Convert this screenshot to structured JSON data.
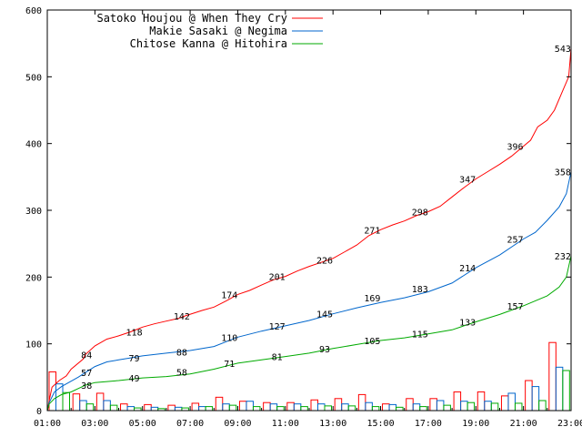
{
  "chart_data": {
    "type": "line",
    "title": "",
    "xlabel": "",
    "ylabel": "",
    "ylim": [
      0,
      600
    ],
    "yticks": [
      0,
      100,
      200,
      300,
      400,
      500,
      600
    ],
    "xlim": [
      1,
      23
    ],
    "xticks": [
      "01:00",
      "03:00",
      "05:00",
      "07:00",
      "09:00",
      "11:00",
      "13:00",
      "15:00",
      "17:00",
      "19:00",
      "21:00",
      "23:00"
    ],
    "legend_position": "top-left",
    "series": [
      {
        "name": "Satoko Houjou @ When They Cry",
        "color": "#ff0000",
        "points": [
          [
            1.0,
            0
          ],
          [
            1.08,
            15
          ],
          [
            1.2,
            35
          ],
          [
            1.5,
            45
          ],
          [
            1.8,
            52
          ],
          [
            2.0,
            62
          ],
          [
            2.5,
            77
          ],
          [
            2.6,
            84
          ],
          [
            3.0,
            97
          ],
          [
            3.5,
            107
          ],
          [
            4.0,
            112
          ],
          [
            4.5,
            118
          ],
          [
            5.0,
            125
          ],
          [
            5.5,
            130
          ],
          [
            6.0,
            134
          ],
          [
            6.5,
            138
          ],
          [
            6.8,
            142
          ],
          [
            7.5,
            150
          ],
          [
            8.0,
            155
          ],
          [
            8.5,
            164
          ],
          [
            9.0,
            174
          ],
          [
            9.5,
            180
          ],
          [
            10.0,
            188
          ],
          [
            10.5,
            196
          ],
          [
            11.0,
            201
          ],
          [
            11.5,
            209
          ],
          [
            12.0,
            216
          ],
          [
            12.5,
            222
          ],
          [
            13.0,
            228
          ],
          [
            13.5,
            238
          ],
          [
            14.0,
            248
          ],
          [
            14.5,
            262
          ],
          [
            15.0,
            271
          ],
          [
            15.5,
            278
          ],
          [
            16.0,
            284
          ],
          [
            16.5,
            292
          ],
          [
            17.0,
            298
          ],
          [
            17.5,
            306
          ],
          [
            18.0,
            320
          ],
          [
            18.5,
            334
          ],
          [
            19.0,
            347
          ],
          [
            19.5,
            358
          ],
          [
            20.0,
            369
          ],
          [
            20.5,
            381
          ],
          [
            21.0,
            396
          ],
          [
            21.3,
            405
          ],
          [
            21.6,
            425
          ],
          [
            22.0,
            435
          ],
          [
            22.3,
            450
          ],
          [
            22.6,
            475
          ],
          [
            22.9,
            500
          ],
          [
            23.0,
            543
          ]
        ]
      },
      {
        "name": "Makie Sasaki @ Negima",
        "color": "#0066cc",
        "points": [
          [
            1.0,
            0
          ],
          [
            1.08,
            12
          ],
          [
            1.3,
            28
          ],
          [
            1.6,
            36
          ],
          [
            2.0,
            44
          ],
          [
            2.3,
            50
          ],
          [
            2.6,
            57
          ],
          [
            3.0,
            66
          ],
          [
            3.5,
            73
          ],
          [
            4.0,
            76
          ],
          [
            4.5,
            79
          ],
          [
            5.0,
            82
          ],
          [
            6.0,
            86
          ],
          [
            7.0,
            90
          ],
          [
            8.0,
            96
          ],
          [
            9.0,
            110
          ],
          [
            10.0,
            119
          ],
          [
            11.0,
            127
          ],
          [
            12.0,
            135
          ],
          [
            13.0,
            145
          ],
          [
            14.0,
            154
          ],
          [
            15.0,
            162
          ],
          [
            16.0,
            169
          ],
          [
            17.0,
            178
          ],
          [
            18.0,
            191
          ],
          [
            19.0,
            214
          ],
          [
            20.0,
            233
          ],
          [
            21.0,
            257
          ],
          [
            21.5,
            267
          ],
          [
            22.0,
            285
          ],
          [
            22.5,
            305
          ],
          [
            22.8,
            325
          ],
          [
            23.0,
            358
          ]
        ]
      },
      {
        "name": "Chitose Kanna @ Hitohira",
        "color": "#00aa00",
        "points": [
          [
            1.0,
            0
          ],
          [
            1.08,
            10
          ],
          [
            1.3,
            18
          ],
          [
            1.6,
            24
          ],
          [
            2.0,
            28
          ],
          [
            2.6,
            38
          ],
          [
            3.0,
            42
          ],
          [
            4.0,
            45
          ],
          [
            5.0,
            49
          ],
          [
            6.0,
            51
          ],
          [
            7.0,
            55
          ],
          [
            8.0,
            62
          ],
          [
            9.0,
            71
          ],
          [
            10.0,
            76
          ],
          [
            11.0,
            81
          ],
          [
            12.0,
            86
          ],
          [
            13.0,
            93
          ],
          [
            14.0,
            99
          ],
          [
            15.0,
            105
          ],
          [
            16.0,
            109
          ],
          [
            17.0,
            115
          ],
          [
            18.0,
            121
          ],
          [
            19.0,
            133
          ],
          [
            20.0,
            144
          ],
          [
            21.0,
            157
          ],
          [
            22.0,
            172
          ],
          [
            22.5,
            185
          ],
          [
            22.8,
            200
          ],
          [
            23.0,
            232
          ]
        ]
      }
    ],
    "data_labels": [
      {
        "series": 0,
        "x": 2.65,
        "y": 84,
        "text": "84"
      },
      {
        "series": 0,
        "x": 4.65,
        "y": 118,
        "text": "118"
      },
      {
        "series": 0,
        "x": 6.65,
        "y": 142,
        "text": "142"
      },
      {
        "series": 0,
        "x": 8.65,
        "y": 174,
        "text": "174"
      },
      {
        "series": 0,
        "x": 10.65,
        "y": 201,
        "text": "201"
      },
      {
        "series": 0,
        "x": 12.65,
        "y": 226,
        "text": "226"
      },
      {
        "series": 0,
        "x": 14.65,
        "y": 271,
        "text": "271"
      },
      {
        "series": 0,
        "x": 16.65,
        "y": 298,
        "text": "298"
      },
      {
        "series": 0,
        "x": 18.65,
        "y": 347,
        "text": "347"
      },
      {
        "series": 0,
        "x": 20.65,
        "y": 396,
        "text": "396"
      },
      {
        "series": 0,
        "x": 22.65,
        "y": 543,
        "text": "543"
      },
      {
        "series": 1,
        "x": 2.65,
        "y": 57,
        "text": "57"
      },
      {
        "series": 1,
        "x": 4.65,
        "y": 79,
        "text": "79"
      },
      {
        "series": 1,
        "x": 6.65,
        "y": 88,
        "text": "88"
      },
      {
        "series": 1,
        "x": 8.65,
        "y": 110,
        "text": "110"
      },
      {
        "series": 1,
        "x": 10.65,
        "y": 127,
        "text": "127"
      },
      {
        "series": 1,
        "x": 12.65,
        "y": 145,
        "text": "145"
      },
      {
        "series": 1,
        "x": 14.65,
        "y": 169,
        "text": "169"
      },
      {
        "series": 1,
        "x": 16.65,
        "y": 183,
        "text": "183"
      },
      {
        "series": 1,
        "x": 18.65,
        "y": 214,
        "text": "214"
      },
      {
        "series": 1,
        "x": 20.65,
        "y": 257,
        "text": "257"
      },
      {
        "series": 1,
        "x": 22.65,
        "y": 358,
        "text": "358"
      },
      {
        "series": 2,
        "x": 2.65,
        "y": 38,
        "text": "38"
      },
      {
        "series": 2,
        "x": 4.65,
        "y": 49,
        "text": "49"
      },
      {
        "series": 2,
        "x": 6.65,
        "y": 58,
        "text": "58"
      },
      {
        "series": 2,
        "x": 8.65,
        "y": 71,
        "text": "71"
      },
      {
        "series": 2,
        "x": 10.65,
        "y": 81,
        "text": "81"
      },
      {
        "series": 2,
        "x": 12.65,
        "y": 93,
        "text": "93"
      },
      {
        "series": 2,
        "x": 14.65,
        "y": 105,
        "text": "105"
      },
      {
        "series": 2,
        "x": 16.65,
        "y": 115,
        "text": "115"
      },
      {
        "series": 2,
        "x": 18.65,
        "y": 133,
        "text": "133"
      },
      {
        "series": 2,
        "x": 20.65,
        "y": 157,
        "text": "157"
      },
      {
        "series": 2,
        "x": 22.65,
        "y": 232,
        "text": "232"
      }
    ],
    "hourly_bars": {
      "hours": [
        1,
        2,
        3,
        4,
        5,
        6,
        7,
        8,
        9,
        10,
        11,
        12,
        13,
        14,
        15,
        16,
        17,
        18,
        19,
        20,
        21,
        22,
        23
      ],
      "series": [
        [
          58,
          25,
          26,
          10,
          9,
          8,
          11,
          20,
          14,
          12,
          12,
          16,
          18,
          24,
          10,
          18,
          18,
          28,
          28,
          22,
          45,
          102,
          0
        ],
        [
          40,
          15,
          15,
          6,
          5,
          5,
          6,
          10,
          14,
          10,
          10,
          10,
          10,
          12,
          9,
          10,
          15,
          14,
          14,
          26,
          36,
          65,
          0
        ],
        [
          27,
          10,
          8,
          4,
          3,
          4,
          6,
          8,
          6,
          6,
          6,
          7,
          7,
          6,
          5,
          6,
          8,
          12,
          11,
          11,
          15,
          60,
          0
        ]
      ]
    }
  }
}
